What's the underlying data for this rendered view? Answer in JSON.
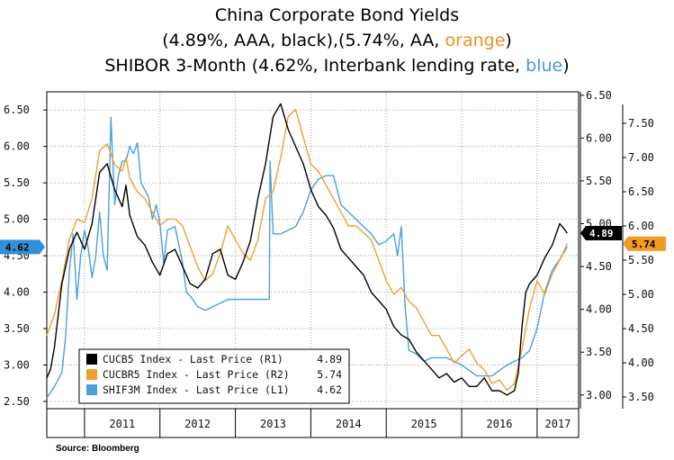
{
  "title": {
    "line1": "China Corporate Bond Yields",
    "line2_a": "(4.89%, AAA, black),(5.74%, AA, ",
    "line2_b": "orange",
    "line2_c": ")",
    "line3_a": "SHIBOR 3-Month  (4.62%, Interbank lending rate, ",
    "line3_b": "blue",
    "line3_c": ")"
  },
  "source": "Source: Bloomberg",
  "colors": {
    "black": "#000000",
    "orange": "#f0a030",
    "blue": "#4aa0de"
  },
  "chart_data": {
    "type": "line",
    "x_range": [
      2010.5,
      2017.55
    ],
    "x_labels": [
      "2011",
      "2012",
      "2013",
      "2014",
      "2015",
      "2016",
      "2017"
    ],
    "left_axis": {
      "ylim": [
        2.4,
        6.75
      ],
      "ticks": [
        "6.50",
        "6.00",
        "5.50",
        "5.00",
        "4.50",
        "4.00",
        "3.50",
        "3.00",
        "2.50"
      ]
    },
    "right_inner_axis": {
      "ylim": [
        2.84,
        6.54
      ],
      "ticks": [
        "6.50",
        "6.00",
        "5.50",
        "5.00",
        "4.50",
        "4.00",
        "3.50",
        "3.00"
      ]
    },
    "right_outer_axis": {
      "ylim": [
        3.33,
        7.96
      ],
      "ticks": [
        "7.50",
        "7.00",
        "6.50",
        "6.00",
        "5.50",
        "5.00",
        "4.50",
        "4.00",
        "3.50"
      ]
    },
    "series": [
      {
        "name": "SHIF3M Index - Last Price (L1)",
        "axis": "left",
        "color": "#4aa0de",
        "last": "4.62",
        "x": [
          2010.5,
          2010.6,
          2010.7,
          2010.75,
          2010.8,
          2010.85,
          2010.9,
          2010.95,
          2011.0,
          2011.05,
          2011.1,
          2011.15,
          2011.2,
          2011.25,
          2011.3,
          2011.35,
          2011.4,
          2011.45,
          2011.5,
          2011.55,
          2011.6,
          2011.65,
          2011.7,
          2011.75,
          2011.8,
          2011.85,
          2011.9,
          2011.95,
          2012.0,
          2012.05,
          2012.1,
          2012.2,
          2012.3,
          2012.35,
          2012.4,
          2012.5,
          2012.6,
          2012.7,
          2012.8,
          2012.9,
          2013.0,
          2013.1,
          2013.2,
          2013.3,
          2013.4,
          2013.45,
          2013.46,
          2013.5,
          2013.6,
          2013.7,
          2013.8,
          2013.9,
          2014.0,
          2014.1,
          2014.2,
          2014.3,
          2014.4,
          2014.5,
          2014.6,
          2014.7,
          2014.8,
          2014.9,
          2015.0,
          2015.1,
          2015.15,
          2015.2,
          2015.25,
          2015.3,
          2015.4,
          2015.5,
          2015.6,
          2015.7,
          2015.8,
          2015.9,
          2016.0,
          2016.2,
          2016.4,
          2016.6,
          2016.7,
          2016.8,
          2016.9,
          2017.0,
          2017.1,
          2017.2,
          2017.3,
          2017.4
        ],
        "y": [
          2.55,
          2.7,
          2.9,
          3.4,
          4.3,
          4.8,
          3.9,
          4.5,
          4.85,
          4.6,
          4.2,
          4.5,
          5.1,
          4.5,
          4.3,
          6.4,
          5.2,
          5.6,
          5.8,
          5.8,
          6.0,
          5.9,
          6.05,
          5.5,
          5.4,
          5.3,
          5.0,
          5.2,
          4.95,
          4.4,
          4.85,
          4.9,
          4.4,
          4.0,
          3.95,
          3.8,
          3.75,
          3.8,
          3.85,
          3.9,
          3.9,
          3.9,
          3.9,
          3.9,
          3.9,
          3.9,
          5.8,
          4.8,
          4.8,
          4.85,
          4.9,
          5.1,
          5.4,
          5.55,
          5.6,
          5.6,
          5.2,
          5.1,
          5.0,
          4.9,
          4.8,
          4.65,
          4.7,
          4.8,
          4.5,
          4.9,
          3.8,
          3.2,
          3.15,
          3.05,
          3.1,
          3.1,
          3.1,
          3.05,
          3.0,
          2.85,
          2.85,
          3.0,
          3.05,
          3.1,
          3.2,
          3.5,
          4.0,
          4.3,
          4.45,
          4.62
        ]
      },
      {
        "name": "CUCBR5 Index - Last Price (R2)",
        "axis": "right_outer",
        "color": "#f0a030",
        "last": "5.74",
        "x": [
          2010.5,
          2010.6,
          2010.7,
          2010.8,
          2010.9,
          2011.0,
          2011.1,
          2011.2,
          2011.3,
          2011.4,
          2011.5,
          2011.55,
          2011.6,
          2011.7,
          2011.8,
          2011.9,
          2012.0,
          2012.1,
          2012.2,
          2012.3,
          2012.4,
          2012.5,
          2012.6,
          2012.7,
          2012.8,
          2012.9,
          2013.0,
          2013.1,
          2013.2,
          2013.3,
          2013.4,
          2013.5,
          2013.6,
          2013.7,
          2013.8,
          2013.9,
          2014.0,
          2014.1,
          2014.2,
          2014.3,
          2014.4,
          2014.5,
          2014.6,
          2014.7,
          2014.8,
          2014.9,
          2015.0,
          2015.1,
          2015.2,
          2015.3,
          2015.4,
          2015.5,
          2015.6,
          2015.7,
          2015.8,
          2015.9,
          2016.0,
          2016.1,
          2016.2,
          2016.3,
          2016.4,
          2016.5,
          2016.6,
          2016.7,
          2016.8,
          2016.9,
          2017.0,
          2017.1,
          2017.2,
          2017.3,
          2017.4
        ],
        "y": [
          4.4,
          4.7,
          5.2,
          5.8,
          6.1,
          6.05,
          6.4,
          7.1,
          7.2,
          6.9,
          6.8,
          7.0,
          6.7,
          6.5,
          6.4,
          6.2,
          6.0,
          6.1,
          6.1,
          6.0,
          5.7,
          5.4,
          5.2,
          5.3,
          5.6,
          6.0,
          5.8,
          5.6,
          5.5,
          5.8,
          6.4,
          6.5,
          7.0,
          7.6,
          7.7,
          7.3,
          6.9,
          6.8,
          6.6,
          6.4,
          6.2,
          6.0,
          6.0,
          5.9,
          5.8,
          5.5,
          5.2,
          5.0,
          5.1,
          4.9,
          4.8,
          4.6,
          4.4,
          4.4,
          4.2,
          4.0,
          4.1,
          4.2,
          4.0,
          3.9,
          3.7,
          3.75,
          3.6,
          3.7,
          4.2,
          4.8,
          5.2,
          5.0,
          5.3,
          5.5,
          5.74
        ]
      },
      {
        "name": "CUCB5 Index - Last Price (R1)",
        "axis": "right_inner",
        "color": "#000000",
        "last": "4.89",
        "x": [
          2010.5,
          2010.55,
          2010.6,
          2010.7,
          2010.8,
          2010.9,
          2011.0,
          2011.1,
          2011.2,
          2011.3,
          2011.4,
          2011.5,
          2011.55,
          2011.6,
          2011.7,
          2011.8,
          2011.9,
          2012.0,
          2012.1,
          2012.2,
          2012.3,
          2012.4,
          2012.5,
          2012.6,
          2012.7,
          2012.8,
          2012.9,
          2013.0,
          2013.1,
          2013.2,
          2013.3,
          2013.4,
          2013.5,
          2013.6,
          2013.7,
          2013.8,
          2013.9,
          2014.0,
          2014.1,
          2014.2,
          2014.3,
          2014.4,
          2014.5,
          2014.6,
          2014.7,
          2014.8,
          2014.9,
          2015.0,
          2015.1,
          2015.2,
          2015.3,
          2015.4,
          2015.5,
          2015.6,
          2015.7,
          2015.8,
          2015.9,
          2016.0,
          2016.1,
          2016.2,
          2016.3,
          2016.4,
          2016.5,
          2016.6,
          2016.7,
          2016.75,
          2016.8,
          2016.85,
          2016.9,
          2017.0,
          2017.1,
          2017.2,
          2017.3,
          2017.35,
          2017.4
        ],
        "y": [
          3.2,
          3.3,
          3.55,
          4.3,
          4.7,
          4.9,
          4.7,
          5.0,
          5.6,
          5.7,
          5.4,
          5.2,
          5.45,
          5.1,
          4.85,
          4.75,
          4.55,
          4.4,
          4.65,
          4.7,
          4.5,
          4.3,
          4.25,
          4.35,
          4.65,
          4.7,
          4.4,
          4.35,
          4.55,
          4.8,
          5.3,
          5.7,
          6.25,
          6.4,
          6.1,
          5.9,
          5.7,
          5.4,
          5.2,
          5.1,
          4.95,
          4.7,
          4.6,
          4.5,
          4.4,
          4.2,
          4.1,
          4.0,
          3.8,
          3.7,
          3.65,
          3.5,
          3.4,
          3.3,
          3.2,
          3.25,
          3.15,
          3.2,
          3.1,
          3.1,
          3.2,
          3.05,
          3.05,
          3.0,
          3.05,
          3.25,
          3.8,
          4.2,
          4.3,
          4.4,
          4.6,
          4.75,
          5.0,
          4.95,
          4.89
        ]
      }
    ],
    "tags": {
      "left": "4.62",
      "right_inner": "4.89",
      "right_outer": "5.74"
    }
  }
}
